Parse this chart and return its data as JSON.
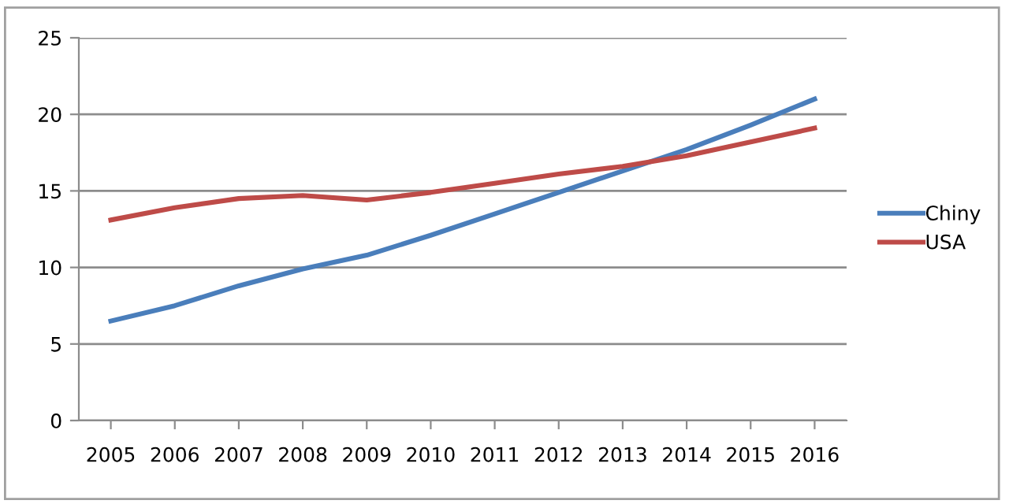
{
  "chart_data": {
    "type": "line",
    "categories": [
      "2005",
      "2006",
      "2007",
      "2008",
      "2009",
      "2010",
      "2011",
      "2012",
      "2013",
      "2014",
      "2015",
      "2016"
    ],
    "series": [
      {
        "name": "Chiny",
        "color": "#4a7ebb",
        "values": [
          6.5,
          7.5,
          8.8,
          9.9,
          10.8,
          12.1,
          13.5,
          14.9,
          16.3,
          17.7,
          19.3,
          21.0
        ]
      },
      {
        "name": "USA",
        "color": "#be4b48",
        "values": [
          13.1,
          13.9,
          14.5,
          14.7,
          14.4,
          14.9,
          15.5,
          16.1,
          16.6,
          17.3,
          18.2,
          19.1
        ]
      }
    ],
    "ylim": [
      0,
      25
    ],
    "yticks": [
      0,
      5,
      10,
      15,
      20,
      25
    ],
    "grid": "y",
    "legend": "right",
    "marker": "none",
    "line_style": "solid"
  }
}
